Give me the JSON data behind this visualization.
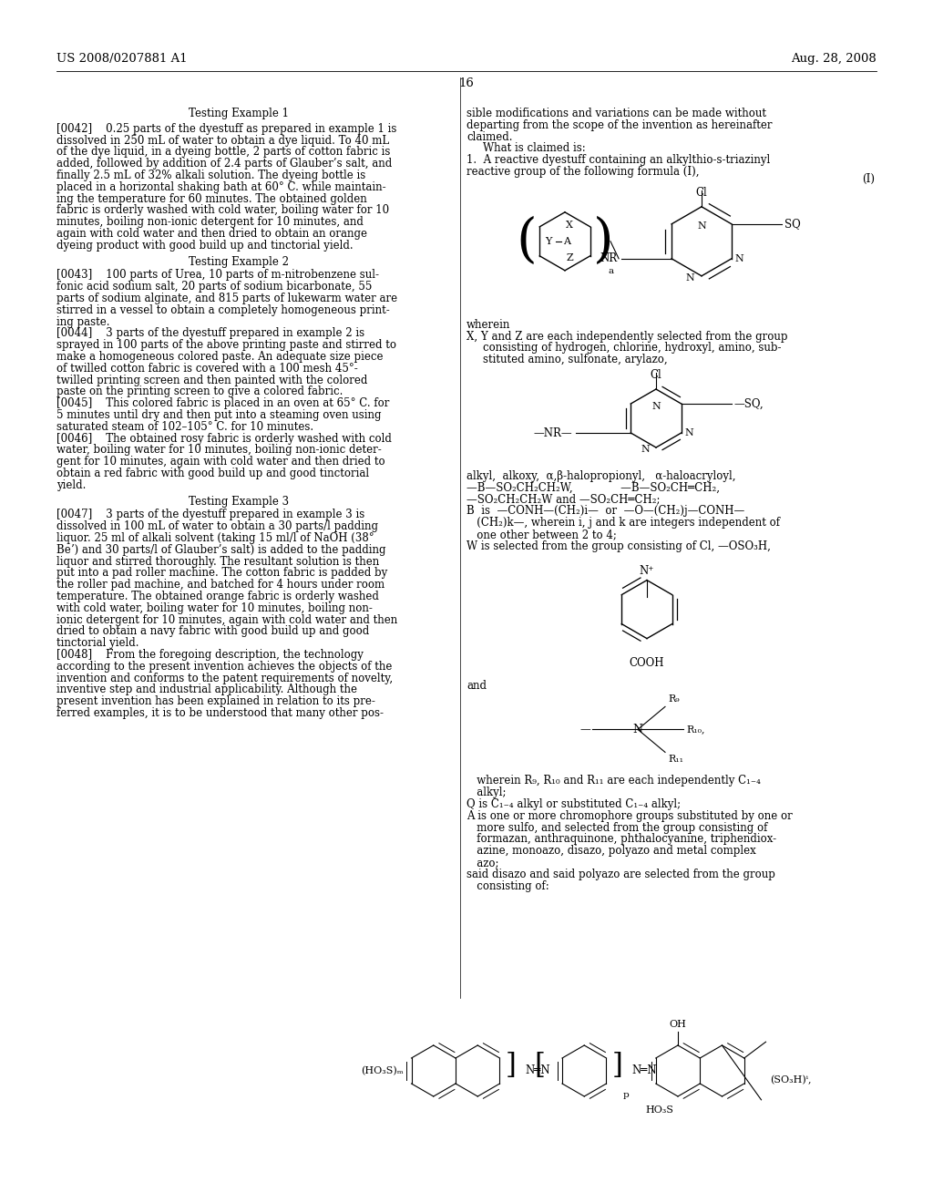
{
  "background_color": "#ffffff",
  "header_left": "US 2008/0207881 A1",
  "header_right": "Aug. 28, 2008",
  "page_number": "16"
}
